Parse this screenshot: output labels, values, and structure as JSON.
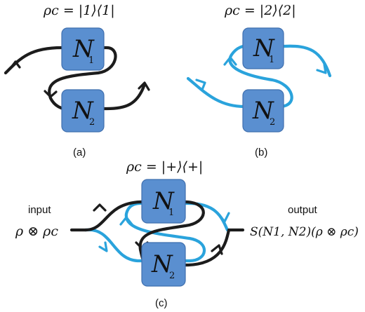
{
  "panel_a": {
    "state_label": "ρc = |1⟩⟨1|",
    "caption": "(a)",
    "box_top": {
      "name": "N",
      "sub": "1"
    },
    "box_bottom": {
      "name": "N",
      "sub": "2"
    }
  },
  "panel_b": {
    "state_label": "ρc = |2⟩⟨2|",
    "caption": "(b)",
    "box_top": {
      "name": "N",
      "sub": "1"
    },
    "box_bottom": {
      "name": "N",
      "sub": "2"
    }
  },
  "panel_c": {
    "state_label": "ρc = |+⟩⟨+|",
    "caption": "(c)",
    "input_label": "input",
    "input_math": "ρ ⊗ ρc",
    "output_label": "output",
    "output_math": "S(N1, N2)(ρ ⊗ ρc)",
    "box_top": {
      "name": "N",
      "sub": "1"
    },
    "box_bottom": {
      "name": "N",
      "sub": "2"
    }
  },
  "colors": {
    "box_fill": "#5a8fd0",
    "wire_black": "#1c1c1c",
    "wire_blue": "#2aa3dc"
  }
}
